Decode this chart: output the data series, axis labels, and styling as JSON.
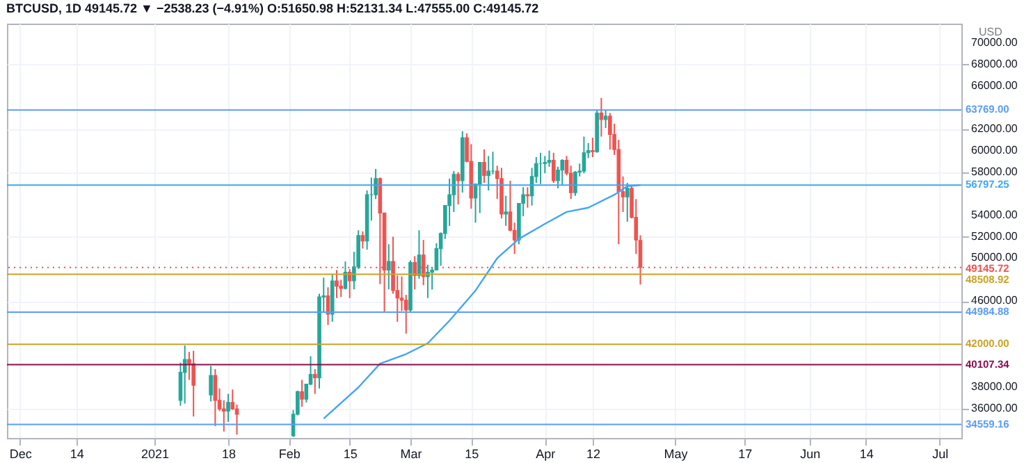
{
  "chart_data": {
    "type": "candlestick",
    "title": "BTCUSD, 1D 49145.72 ▼ −2538.23 (−4.91%) O:51650.98 H:52131.34 L:47555.00 C:49145.72",
    "ylabel": "USD",
    "x": [
      "2021-01-07",
      "2021-01-08",
      "2021-01-09",
      "2021-01-10",
      "2021-01-14",
      "2021-01-15",
      "2021-01-16",
      "2021-01-17",
      "2021-01-18",
      "2021-01-19",
      "2021-01-20",
      "2021-02-02",
      "2021-02-03",
      "2021-02-04",
      "2021-02-05",
      "2021-02-06",
      "2021-02-07",
      "2021-02-08",
      "2021-02-09",
      "2021-02-10",
      "2021-02-11",
      "2021-02-12",
      "2021-02-13",
      "2021-02-14",
      "2021-02-15",
      "2021-02-16",
      "2021-02-17",
      "2021-02-18",
      "2021-02-19",
      "2021-02-20",
      "2021-02-21",
      "2021-02-22",
      "2021-02-23",
      "2021-02-24",
      "2021-02-25",
      "2021-02-26",
      "2021-02-27",
      "2021-02-28",
      "2021-03-01",
      "2021-03-02",
      "2021-03-03",
      "2021-03-04",
      "2021-03-05",
      "2021-03-06",
      "2021-03-07",
      "2021-03-08",
      "2021-03-09",
      "2021-03-10",
      "2021-03-11",
      "2021-03-12",
      "2021-03-13",
      "2021-03-14",
      "2021-03-15",
      "2021-03-16",
      "2021-03-17",
      "2021-03-18",
      "2021-03-19",
      "2021-03-20",
      "2021-03-21",
      "2021-03-22",
      "2021-03-23",
      "2021-03-24",
      "2021-03-25",
      "2021-03-26",
      "2021-03-27",
      "2021-03-28",
      "2021-03-29",
      "2021-03-30",
      "2021-03-31",
      "2021-04-01",
      "2021-04-02",
      "2021-04-03",
      "2021-04-04",
      "2021-04-05",
      "2021-04-06",
      "2021-04-07",
      "2021-04-08",
      "2021-04-09",
      "2021-04-10",
      "2021-04-11",
      "2021-04-12",
      "2021-04-13",
      "2021-04-14",
      "2021-04-15",
      "2021-04-16",
      "2021-04-17",
      "2021-04-18",
      "2021-04-19",
      "2021-04-20",
      "2021-04-21",
      "2021-04-22",
      "2021-04-23"
    ],
    "ohlc": [
      [
        36800,
        40300,
        36300,
        39400
      ],
      [
        39400,
        41900,
        36500,
        40600
      ],
      [
        40600,
        41300,
        38700,
        40200
      ],
      [
        40200,
        41400,
        35300,
        38200
      ],
      [
        37300,
        40000,
        36700,
        39100
      ],
      [
        39100,
        39700,
        34400,
        36800
      ],
      [
        36800,
        37900,
        35800,
        36000
      ],
      [
        36000,
        36800,
        33900,
        35800
      ],
      [
        35800,
        37400,
        34800,
        36600
      ],
      [
        36600,
        37800,
        35900,
        36000
      ],
      [
        36000,
        36400,
        33600,
        35500
      ],
      [
        33500,
        35900,
        33400,
        35500
      ],
      [
        35500,
        37700,
        35400,
        37600
      ],
      [
        37600,
        38700,
        36200,
        36900
      ],
      [
        36900,
        38300,
        36600,
        38300
      ],
      [
        38300,
        40900,
        38200,
        39200
      ],
      [
        39200,
        39700,
        37400,
        38900
      ],
      [
        38900,
        46700,
        37900,
        46400
      ],
      [
        46400,
        48200,
        45000,
        46500
      ],
      [
        46500,
        47300,
        43800,
        44800
      ],
      [
        44800,
        48500,
        44100,
        47900
      ],
      [
        47900,
        48900,
        46300,
        47400
      ],
      [
        47400,
        48000,
        46400,
        47200
      ],
      [
        47200,
        49700,
        47100,
        48700
      ],
      [
        48700,
        49000,
        46300,
        47900
      ],
      [
        47900,
        50600,
        47100,
        49200
      ],
      [
        49200,
        52600,
        49000,
        52100
      ],
      [
        52100,
        52500,
        50900,
        51600
      ],
      [
        51600,
        56300,
        50800,
        55900
      ],
      [
        55900,
        57500,
        53500,
        55900
      ],
      [
        55900,
        58300,
        55500,
        57400
      ],
      [
        57400,
        57500,
        47600,
        54200
      ],
      [
        54200,
        54200,
        45000,
        48900
      ],
      [
        48900,
        51300,
        47100,
        49700
      ],
      [
        49700,
        52000,
        46700,
        47000
      ],
      [
        47000,
        48400,
        44100,
        46300
      ],
      [
        46300,
        48300,
        45100,
        46100
      ],
      [
        46100,
        46600,
        43000,
        45200
      ],
      [
        45200,
        49800,
        45000,
        49600
      ],
      [
        49600,
        50200,
        47100,
        48400
      ],
      [
        48400,
        52600,
        48100,
        50300
      ],
      [
        50300,
        51700,
        47500,
        48300
      ],
      [
        48300,
        49400,
        46300,
        48700
      ],
      [
        48700,
        49200,
        47100,
        48900
      ],
      [
        48900,
        51400,
        48900,
        50900
      ],
      [
        50900,
        52400,
        49300,
        52300
      ],
      [
        52300,
        54900,
        51800,
        54900
      ],
      [
        54900,
        57400,
        53000,
        55900
      ],
      [
        55900,
        58100,
        54300,
        57800
      ],
      [
        57800,
        58000,
        55000,
        57200
      ],
      [
        57200,
        61800,
        56100,
        61200
      ],
      [
        61200,
        61600,
        58900,
        59000
      ],
      [
        59000,
        60600,
        54600,
        55600
      ],
      [
        55600,
        56900,
        53300,
        56900
      ],
      [
        56900,
        58900,
        54200,
        58900
      ],
      [
        58900,
        60100,
        57000,
        57700
      ],
      [
        57700,
        59500,
        56300,
        58100
      ],
      [
        58100,
        59900,
        57800,
        58100
      ],
      [
        58100,
        58600,
        55500,
        57400
      ],
      [
        57400,
        58400,
        53700,
        54100
      ],
      [
        54100,
        55800,
        53000,
        54300
      ],
      [
        54300,
        57200,
        52500,
        52600
      ],
      [
        52600,
        53300,
        50400,
        51700
      ],
      [
        51700,
        55100,
        51300,
        55100
      ],
      [
        55100,
        56600,
        53900,
        55900
      ],
      [
        55900,
        56600,
        54700,
        55800
      ],
      [
        55800,
        58400,
        54900,
        57600
      ],
      [
        57600,
        59400,
        57000,
        58800
      ],
      [
        58800,
        59800,
        56900,
        58800
      ],
      [
        58800,
        59500,
        57900,
        58900
      ],
      [
        58900,
        60000,
        58500,
        59100
      ],
      [
        59100,
        59800,
        57000,
        57200
      ],
      [
        57200,
        58500,
        56500,
        58200
      ],
      [
        58200,
        59200,
        56800,
        59100
      ],
      [
        59100,
        59500,
        57700,
        57900
      ],
      [
        57900,
        58600,
        55500,
        56100
      ],
      [
        56100,
        58100,
        55800,
        58000
      ],
      [
        58000,
        58800,
        57600,
        58100
      ],
      [
        58100,
        61300,
        57900,
        59800
      ],
      [
        59800,
        60700,
        59300,
        60000
      ],
      [
        60000,
        61200,
        59400,
        59900
      ],
      [
        59900,
        63800,
        59800,
        63500
      ],
      [
        63500,
        64900,
        61300,
        62900
      ],
      [
        62900,
        63800,
        62100,
        63200
      ],
      [
        63200,
        63500,
        60100,
        61500
      ],
      [
        61500,
        62500,
        59600,
        60100
      ],
      [
        60100,
        61000,
        51300,
        56200
      ],
      [
        56200,
        57600,
        54300,
        55700
      ],
      [
        55700,
        57000,
        53400,
        56500
      ],
      [
        56500,
        56800,
        53700,
        53800
      ],
      [
        53800,
        55500,
        50400,
        51700
      ],
      [
        51650.98,
        52131.34,
        47555.0,
        49145.72
      ]
    ],
    "series": [
      {
        "type": "line",
        "color": "#42a5f5",
        "x": [
          "2021-02-09",
          "2021-02-17",
          "2021-02-22",
          "2021-02-28",
          "2021-03-05",
          "2021-03-10",
          "2021-03-16",
          "2021-03-21",
          "2021-03-26",
          "2021-04-01",
          "2021-04-06",
          "2021-04-11",
          "2021-04-17",
          "2021-04-20",
          "2021-04-23"
        ],
        "values": [
          35100,
          38000,
          40200,
          41100,
          42100,
          44200,
          47000,
          50000,
          51800,
          53200,
          54300,
          54700,
          55900,
          56700,
          56797.25
        ]
      }
    ],
    "xlim": [
      "2020-11-28",
      "2021-07-06"
    ],
    "xticks": [
      {
        "value": "2020-12-01",
        "label": "Dec"
      },
      {
        "value": "2020-12-14",
        "label": "14"
      },
      {
        "value": "2021-01-01",
        "label": "2021"
      },
      {
        "value": "2021-01-18",
        "label": "18"
      },
      {
        "value": "2021-02-01",
        "label": "Feb"
      },
      {
        "value": "2021-02-15",
        "label": "15"
      },
      {
        "value": "2021-03-01",
        "label": "Mar"
      },
      {
        "value": "2021-03-15",
        "label": "15"
      },
      {
        "value": "2021-04-01",
        "label": "Apr"
      },
      {
        "value": "2021-04-12",
        "label": "12"
      },
      {
        "value": "2021-05-01",
        "label": "May"
      },
      {
        "value": "2021-05-17",
        "label": "17"
      },
      {
        "value": "2021-06-01",
        "label": "Jun"
      },
      {
        "value": "2021-06-14",
        "label": "14"
      },
      {
        "value": "2021-07-01",
        "label": "Jul"
      }
    ],
    "ylim": [
      33300,
      71800
    ],
    "yticks": [
      {
        "value": 36000,
        "label": "36000.00"
      },
      {
        "value": 38000,
        "label": "38000.00"
      },
      {
        "value": 46000,
        "label": "46000.00"
      },
      {
        "value": 50000,
        "label": "50000.00"
      },
      {
        "value": 52000,
        "label": "52000.00"
      },
      {
        "value": 54000,
        "label": "54000.00"
      },
      {
        "value": 58000,
        "label": "58000.00"
      },
      {
        "value": 60000,
        "label": "60000.00"
      },
      {
        "value": 62000,
        "label": "62000.00"
      },
      {
        "value": 66000,
        "label": "66000.00"
      },
      {
        "value": 68000,
        "label": "68000.00"
      },
      {
        "value": 70000,
        "label": "70000.00"
      }
    ],
    "ref_lines": [
      {
        "axis": "y",
        "value": 63769,
        "label": "63769.00",
        "color": "#5b9cf6"
      },
      {
        "axis": "y",
        "value": 56797.25,
        "label": "56797.25",
        "color": "#42a5f5"
      },
      {
        "axis": "y",
        "value": 49145.72,
        "label": "49145.72",
        "color": "#ef5350",
        "line_style": "dotted"
      },
      {
        "axis": "y",
        "value": 48508.92,
        "label": "48508.92",
        "color": "#c9a227"
      },
      {
        "axis": "y",
        "value": 44984.88,
        "label": "44984.88",
        "color": "#5b9cf6"
      },
      {
        "axis": "y",
        "value": 42000,
        "label": "42000.00",
        "color": "#c9a227"
      },
      {
        "axis": "y",
        "value": 40107.34,
        "label": "40107.34",
        "color": "#880e4f"
      },
      {
        "axis": "y",
        "value": 34559.16,
        "label": "34559.16",
        "color": "#5b9cf6"
      }
    ],
    "grid": true
  }
}
